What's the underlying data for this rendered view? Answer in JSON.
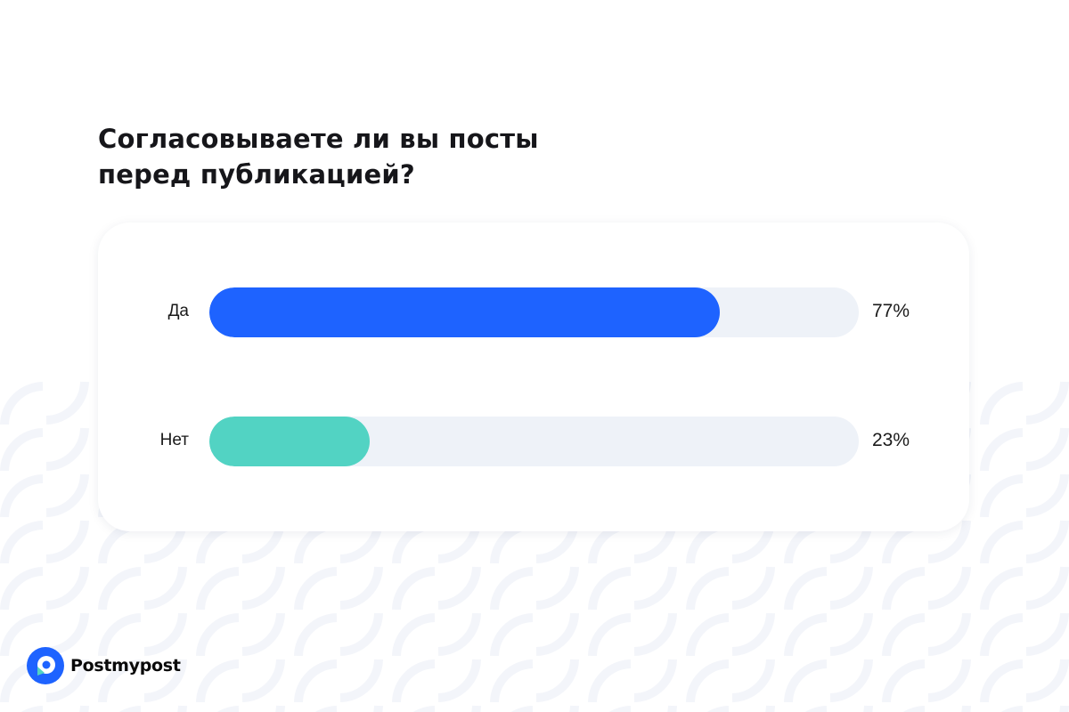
{
  "chart_data": {
    "type": "bar",
    "orientation": "horizontal",
    "title": "Согласовываете ли вы посты перед публикацией?",
    "title_lines": [
      "Согласовываете ли вы посты",
      "перед публикацией?"
    ],
    "categories": [
      "Да",
      "Нет"
    ],
    "values": [
      77,
      23
    ],
    "value_labels": [
      "77%",
      "23%"
    ],
    "xlim": [
      0,
      100
    ],
    "bar_colors": [
      "#1e63ff",
      "#52d3c3"
    ],
    "track_color": "#eef2f8",
    "grid": false
  },
  "brand": {
    "name": "Postmypost",
    "color": "#1e63ff"
  }
}
